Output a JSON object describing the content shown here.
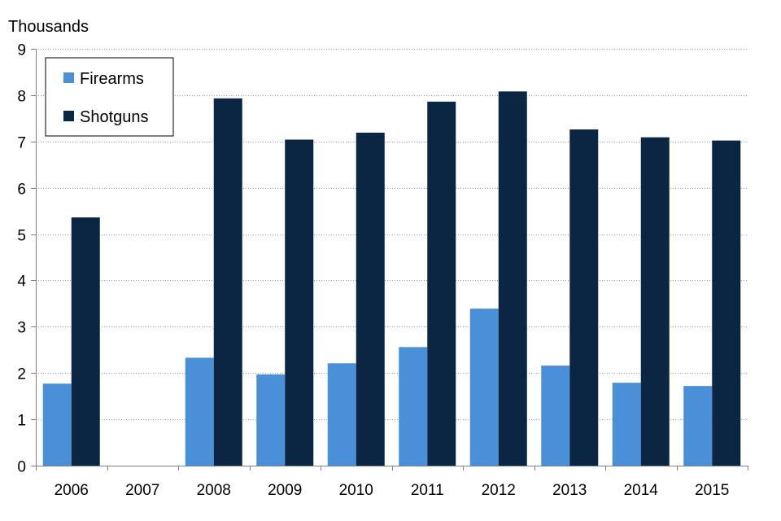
{
  "chart_data": {
    "type": "bar",
    "ylabel": "Thousands",
    "categories": [
      "2006",
      "2007",
      "2008",
      "2009",
      "2010",
      "2011",
      "2012",
      "2013",
      "2014",
      "2015"
    ],
    "series": [
      {
        "name": "Firearms",
        "color": "#4a90d9",
        "values": [
          1.77,
          null,
          2.33,
          1.97,
          2.21,
          2.56,
          3.39,
          2.16,
          1.79,
          1.72
        ]
      },
      {
        "name": "Shotguns",
        "color": "#0b2642",
        "values": [
          5.36,
          null,
          7.93,
          7.04,
          7.19,
          7.86,
          8.08,
          7.26,
          7.09,
          7.02
        ]
      }
    ],
    "ylim": [
      0,
      9
    ],
    "yticks": [
      0,
      1,
      2,
      3,
      4,
      5,
      6,
      7,
      8,
      9
    ],
    "grid": true,
    "legend_position": "top-left"
  }
}
